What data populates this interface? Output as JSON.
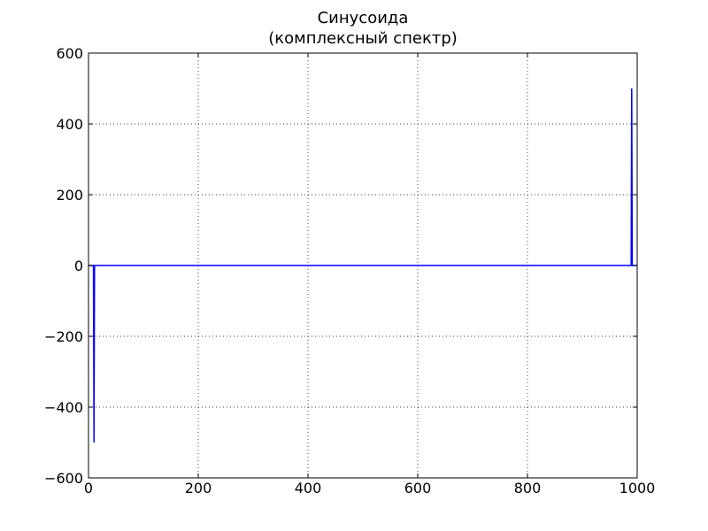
{
  "chart_data": {
    "type": "line",
    "title_lines": [
      "Синусоида",
      "(комплексный спектр)"
    ],
    "xlabel": "",
    "ylabel": "",
    "xlim": [
      0,
      1000
    ],
    "ylim": [
      -600,
      600
    ],
    "grid": true,
    "line_color": "#0000ff",
    "x_ticks": [
      {
        "value": 0,
        "label": "0"
      },
      {
        "value": 200,
        "label": "200"
      },
      {
        "value": 400,
        "label": "400"
      },
      {
        "value": 600,
        "label": "600"
      },
      {
        "value": 800,
        "label": "800"
      },
      {
        "value": 1000,
        "label": "1000"
      }
    ],
    "y_ticks": [
      {
        "value": 600,
        "label": "600"
      },
      {
        "value": 400,
        "label": "400"
      },
      {
        "value": 200,
        "label": "200"
      },
      {
        "value": 0,
        "label": "0"
      },
      {
        "value": -200,
        "label": "−200"
      },
      {
        "value": -400,
        "label": "−400"
      },
      {
        "value": -600,
        "label": "−600"
      }
    ],
    "series": [
      {
        "x": [
          0,
          9,
          10,
          11,
          989,
          990,
          991,
          999
        ],
        "y": [
          0,
          0,
          -500,
          0,
          0,
          500,
          0,
          0
        ]
      }
    ]
  }
}
